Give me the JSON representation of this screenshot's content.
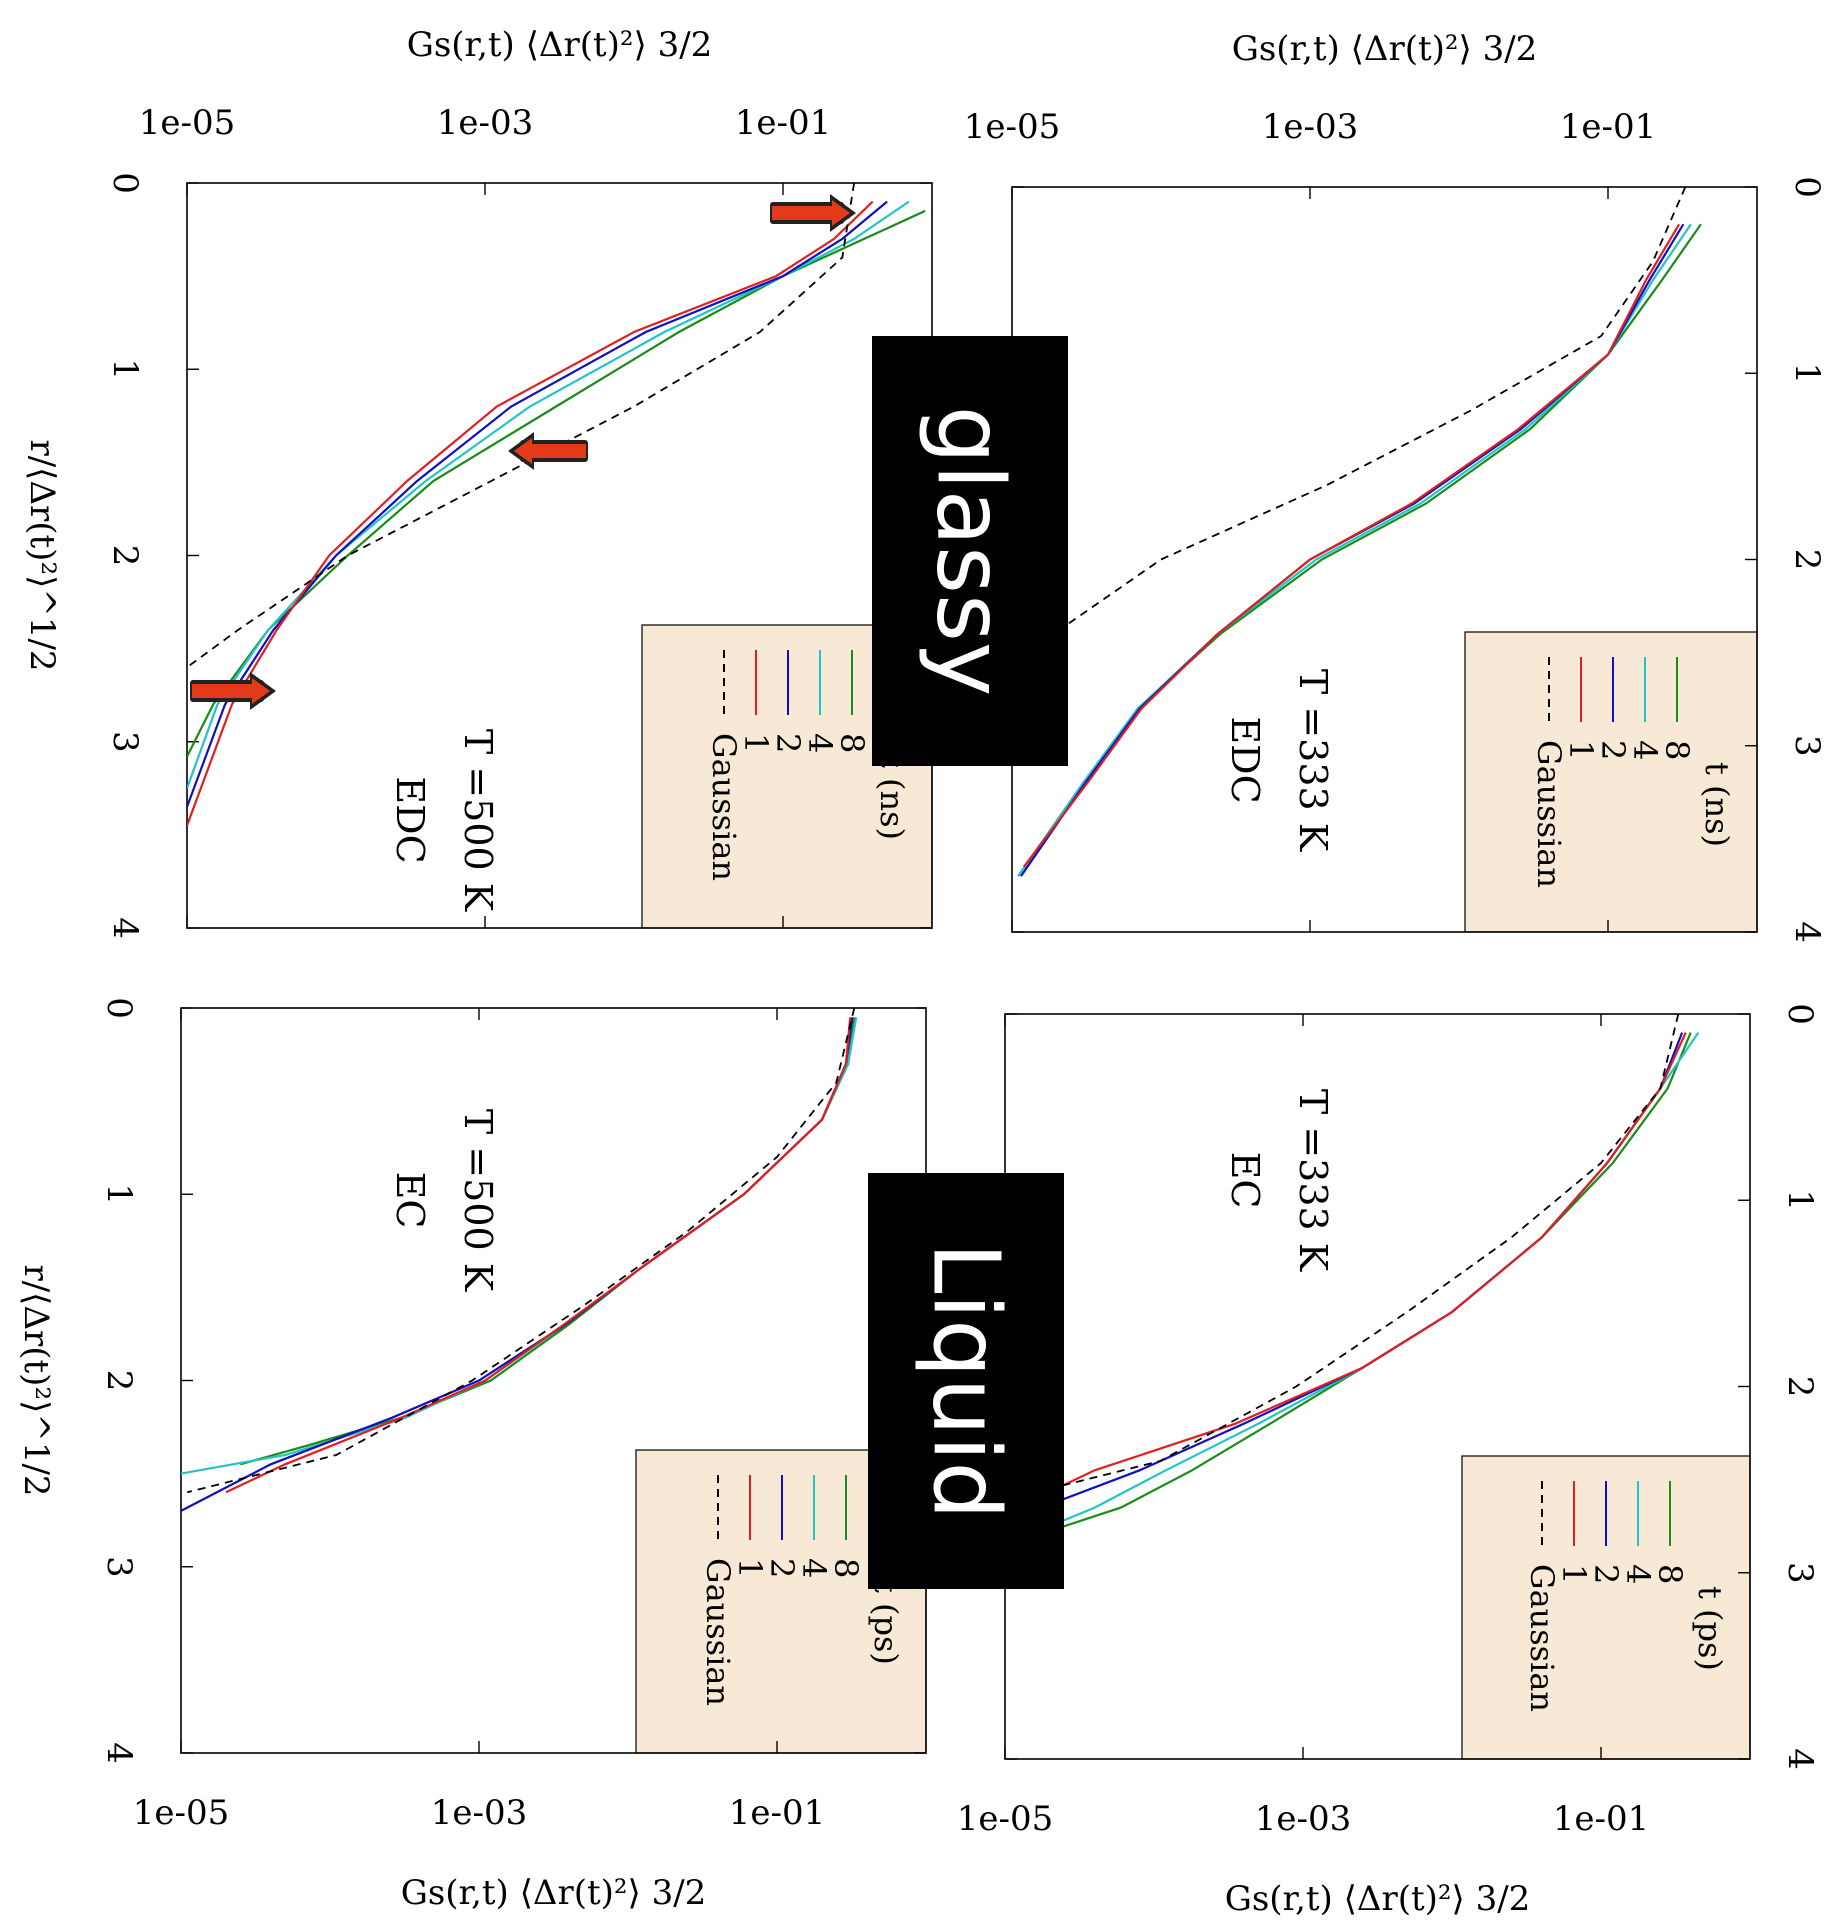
{
  "chart_data": [
    {
      "type": "line",
      "panel": "top-left",
      "temperature": "T =500 K",
      "system": "EDC",
      "legend_title": "t (ns)",
      "xlabel": "r/⟨Δr(t)²⟩^1/2",
      "ylabel": "Gs(r,t) ⟨Δr(t)²⟩ 3/2",
      "xlim": [
        0,
        4
      ],
      "ylim": [
        1e-05,
        1
      ],
      "yscale": "log",
      "x_ticks": [
        "0",
        "1",
        "2",
        "3",
        "4"
      ],
      "y_ticks": [
        "1e-05",
        "1e-03",
        "1e-01"
      ],
      "series": [
        {
          "name": "8",
          "color": "#1a8c1a",
          "x": [
            0.15,
            0.3,
            0.5,
            0.8,
            1.2,
            1.6,
            2.0,
            2.4,
            2.8,
            3.08
          ],
          "y": [
            0.9,
            0.35,
            0.1,
            0.02,
            0.003,
            0.00045,
            0.00012,
            3.5e-05,
            1.5e-05,
            1e-05
          ]
        },
        {
          "name": "4",
          "color": "#22c4c4",
          "x": [
            0.1,
            0.3,
            0.5,
            0.8,
            1.2,
            1.6,
            2.0,
            2.4,
            2.8,
            3.25
          ],
          "y": [
            0.7,
            0.3,
            0.1,
            0.016,
            0.002,
            0.0004,
            0.0001,
            3.5e-05,
            1.6e-05,
            1e-05
          ]
        },
        {
          "name": "2",
          "color": "#1010c0",
          "x": [
            0.1,
            0.3,
            0.5,
            0.8,
            1.2,
            1.6,
            2.0,
            2.4,
            2.8,
            3.35
          ],
          "y": [
            0.5,
            0.25,
            0.1,
            0.012,
            0.0015,
            0.00035,
            0.0001,
            3.8e-05,
            1.8e-05,
            1e-05
          ]
        },
        {
          "name": "1",
          "color": "#e02020",
          "x": [
            0.1,
            0.3,
            0.5,
            0.8,
            1.2,
            1.6,
            2.0,
            2.4,
            2.8,
            3.45
          ],
          "y": [
            0.4,
            0.22,
            0.09,
            0.01,
            0.0012,
            0.0003,
            9e-05,
            4e-05,
            2e-05,
            1e-05
          ]
        },
        {
          "name": "Gaussian",
          "color": "#000000",
          "dashed": true,
          "x": [
            0.0,
            0.4,
            0.8,
            1.2,
            1.6,
            2.0,
            2.4,
            2.6
          ],
          "y": [
            0.3,
            0.25,
            0.07,
            0.01,
            0.0011,
            0.00012,
            2.2e-05,
            1e-05
          ]
        }
      ]
    },
    {
      "type": "line",
      "panel": "top-right",
      "temperature": "T =333 K",
      "system": "EDC",
      "legend_title": "t (ns)",
      "xlabel": "",
      "ylabel": "Gs(r,t) ⟨Δr(t)²⟩ 3/2",
      "xlim": [
        0,
        4
      ],
      "ylim": [
        1e-05,
        1
      ],
      "yscale": "log",
      "x_ticks": [
        "0",
        "1",
        "2",
        "3",
        "4"
      ],
      "y_ticks": [
        "1e-05",
        "1e-03",
        "1e-01"
      ],
      "series": [
        {
          "name": "8",
          "color": "#1a8c1a",
          "x": [
            0.2,
            0.5,
            0.9,
            1.3,
            1.7,
            2.0,
            2.4,
            2.8,
            3.2,
            3.7
          ],
          "y": [
            0.42,
            0.23,
            0.1,
            0.03,
            0.006,
            0.0012,
            0.00025,
            7e-05,
            3e-05,
            1.1e-05
          ]
        },
        {
          "name": "4",
          "color": "#22c4c4",
          "x": [
            0.2,
            0.5,
            0.9,
            1.3,
            1.7,
            2.0,
            2.4,
            2.8,
            3.2,
            3.7
          ],
          "y": [
            0.36,
            0.2,
            0.1,
            0.028,
            0.0055,
            0.0011,
            0.00024,
            7e-05,
            3e-05,
            1.1e-05
          ]
        },
        {
          "name": "2",
          "color": "#1010c0",
          "x": [
            0.2,
            0.5,
            0.9,
            1.3,
            1.7,
            2.0,
            2.4,
            2.8,
            3.2,
            3.7
          ],
          "y": [
            0.32,
            0.19,
            0.1,
            0.026,
            0.005,
            0.001,
            0.00024,
            7.2e-05,
            3.1e-05,
            1.15e-05
          ]
        },
        {
          "name": "1",
          "color": "#e02020",
          "x": [
            0.2,
            0.5,
            0.9,
            1.3,
            1.7,
            2.0,
            2.4,
            2.8,
            3.2,
            3.65
          ],
          "y": [
            0.3,
            0.18,
            0.1,
            0.025,
            0.0048,
            0.001,
            0.00024,
            7.4e-05,
            3.2e-05,
            1.2e-05
          ]
        },
        {
          "name": "Gaussian",
          "color": "#000000",
          "dashed": true,
          "x": [
            0.0,
            0.4,
            0.8,
            1.2,
            1.6,
            2.0,
            2.4,
            2.5
          ],
          "y": [
            0.33,
            0.2,
            0.09,
            0.012,
            0.0013,
            0.0001,
            1.9e-05,
            1.2e-05
          ]
        }
      ]
    },
    {
      "type": "line",
      "panel": "bottom-left",
      "temperature": "T =500 K",
      "system": "EC",
      "legend_title": "t (ps)",
      "xlabel": "r/⟨Δr(t)²⟩^1/2",
      "ylabel": "Gs(r,t) ⟨Δr(t)²⟩ 3/2",
      "xlim": [
        0,
        4
      ],
      "ylim": [
        1e-05,
        1
      ],
      "yscale": "log",
      "x_ticks": [
        "0",
        "1",
        "2",
        "3",
        "4"
      ],
      "y_ticks": [
        "1e-05",
        "1e-03",
        "1e-01"
      ],
      "series": [
        {
          "name": "8",
          "color": "#1a8c1a",
          "x": [
            0.05,
            0.3,
            0.6,
            1.0,
            1.4,
            1.7,
            2.0,
            2.2,
            2.35,
            2.45
          ],
          "y": [
            0.33,
            0.3,
            0.2,
            0.06,
            0.012,
            0.004,
            0.0012,
            0.0003,
            7e-05,
            2.5e-05
          ]
        },
        {
          "name": "4",
          "color": "#22c4c4",
          "x": [
            0.05,
            0.3,
            0.6,
            1.0,
            1.4,
            1.7,
            2.0,
            2.2,
            2.4,
            2.5
          ],
          "y": [
            0.34,
            0.3,
            0.2,
            0.06,
            0.012,
            0.0038,
            0.0011,
            0.00032,
            5e-05,
            1e-05
          ]
        },
        {
          "name": "2",
          "color": "#1010c0",
          "x": [
            0.05,
            0.3,
            0.6,
            1.0,
            1.4,
            1.7,
            2.0,
            2.2,
            2.45,
            2.7
          ],
          "y": [
            0.32,
            0.29,
            0.2,
            0.06,
            0.012,
            0.0038,
            0.001,
            0.00026,
            4e-05,
            1e-05
          ]
        },
        {
          "name": "1",
          "color": "#e02020",
          "x": [
            0.05,
            0.3,
            0.6,
            1.0,
            1.4,
            1.7,
            2.0,
            2.2,
            2.45,
            2.6
          ],
          "y": [
            0.31,
            0.29,
            0.2,
            0.06,
            0.012,
            0.0037,
            0.0011,
            0.0003,
            5e-05,
            2e-05
          ]
        },
        {
          "name": "Gaussian",
          "color": "#000000",
          "dashed": true,
          "x": [
            0.0,
            0.4,
            0.8,
            1.2,
            1.6,
            2.0,
            2.4,
            2.6
          ],
          "y": [
            0.33,
            0.25,
            0.1,
            0.025,
            0.005,
            0.0009,
            0.00011,
            1.1e-05
          ]
        }
      ]
    },
    {
      "type": "line",
      "panel": "bottom-right",
      "temperature": "T =333 K",
      "system": "EC",
      "legend_title": "t (ps)",
      "xlabel": "",
      "ylabel": "Gs(r,t) ⟨Δr(t)²⟩ 3/2",
      "xlim": [
        0,
        4
      ],
      "ylim": [
        1e-05,
        1
      ],
      "yscale": "log",
      "x_ticks": [
        "0",
        "1",
        "2",
        "3",
        "4"
      ],
      "y_ticks": [
        "1e-05",
        "1e-03",
        "1e-01"
      ],
      "series": [
        {
          "name": "8",
          "color": "#1a8c1a",
          "x": [
            0.1,
            0.4,
            0.8,
            1.2,
            1.6,
            1.9,
            2.2,
            2.45,
            2.65,
            2.75,
            2.85
          ],
          "y": [
            0.4,
            0.28,
            0.12,
            0.04,
            0.01,
            0.0025,
            0.0006,
            0.00018,
            6e-05,
            2.5e-05,
            1e-05
          ]
        },
        {
          "name": "4",
          "color": "#22c4c4",
          "x": [
            0.1,
            0.4,
            0.8,
            1.2,
            1.6,
            1.9,
            2.2,
            2.45,
            2.65,
            2.85
          ],
          "y": [
            0.45,
            0.25,
            0.11,
            0.04,
            0.01,
            0.0025,
            0.0005,
            0.00012,
            4e-05,
            1e-05
          ]
        },
        {
          "name": "2",
          "color": "#1010c0",
          "x": [
            0.1,
            0.4,
            0.8,
            1.2,
            1.6,
            1.9,
            2.2,
            2.45,
            2.7
          ],
          "y": [
            0.35,
            0.25,
            0.11,
            0.04,
            0.01,
            0.0025,
            0.0004,
            8e-05,
            1.2e-05
          ]
        },
        {
          "name": "1",
          "color": "#e02020",
          "x": [
            0.1,
            0.4,
            0.8,
            1.2,
            1.6,
            1.9,
            2.2,
            2.45,
            2.65
          ],
          "y": [
            0.37,
            0.25,
            0.11,
            0.04,
            0.01,
            0.0025,
            0.00035,
            4e-05,
            1.2e-05
          ]
        },
        {
          "name": "Gaussian",
          "color": "#000000",
          "dashed": true,
          "x": [
            0.0,
            0.4,
            0.8,
            1.2,
            1.6,
            2.0,
            2.4,
            2.6
          ],
          "y": [
            0.33,
            0.25,
            0.1,
            0.025,
            0.005,
            0.0009,
            0.00011,
            1.1e-05
          ]
        }
      ]
    }
  ],
  "banners": {
    "top": "glassy",
    "bottom": "Liquid"
  },
  "legend_labels": {
    "gaussian": "Gaussian"
  }
}
